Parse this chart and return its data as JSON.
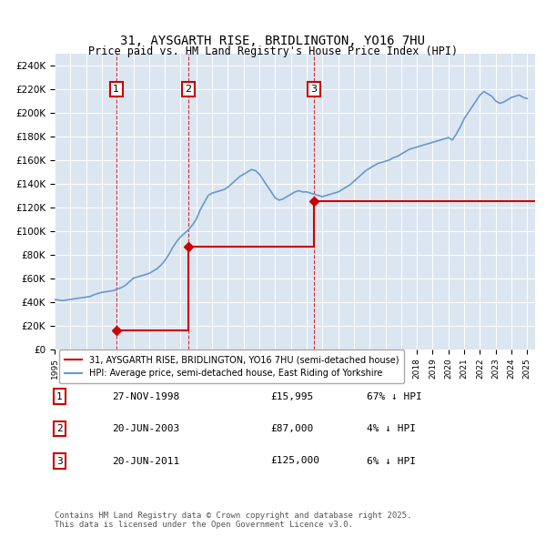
{
  "title": "31, AYSGARTH RISE, BRIDLINGTON, YO16 7HU",
  "subtitle": "Price paid vs. HM Land Registry's House Price Index (HPI)",
  "xlabel": "",
  "ylabel": "",
  "ylim": [
    0,
    250000
  ],
  "ytick_values": [
    0,
    20000,
    40000,
    60000,
    80000,
    100000,
    120000,
    140000,
    160000,
    180000,
    200000,
    220000,
    240000
  ],
  "ytick_labels": [
    "£0",
    "£20K",
    "£40K",
    "£60K",
    "£80K",
    "£100K",
    "£120K",
    "£140K",
    "£160K",
    "£180K",
    "£200K",
    "£220K",
    "£240K"
  ],
  "background_color": "#dce6f1",
  "plot_bg_color": "#dce6f1",
  "hpi_color": "#6699cc",
  "price_color": "#cc0000",
  "sale_marker_color": "#cc0000",
  "legend_label_price": "31, AYSGARTH RISE, BRIDLINGTON, YO16 7HU (semi-detached house)",
  "legend_label_hpi": "HPI: Average price, semi-detached house, East Riding of Yorkshire",
  "sales": [
    {
      "date": 1998.91,
      "price": 15995,
      "label": "1"
    },
    {
      "date": 2003.47,
      "price": 87000,
      "label": "2"
    },
    {
      "date": 2011.47,
      "price": 125000,
      "label": "3"
    }
  ],
  "table_rows": [
    {
      "num": "1",
      "date": "27-NOV-1998",
      "price": "£15,995",
      "note": "67% ↓ HPI"
    },
    {
      "num": "2",
      "date": "20-JUN-2003",
      "price": "£87,000",
      "note": "4% ↓ HPI"
    },
    {
      "num": "3",
      "date": "20-JUN-2011",
      "price": "£125,000",
      "note": "6% ↓ HPI"
    }
  ],
  "footer": "Contains HM Land Registry data © Crown copyright and database right 2025.\nThis data is licensed under the Open Government Licence v3.0.",
  "xmin": 1995,
  "xmax": 2025.5,
  "vline_dates": [
    1998.91,
    2003.47,
    2011.47
  ],
  "hpi_data": {
    "years": [
      1995.0,
      1995.25,
      1995.5,
      1995.75,
      1996.0,
      1996.25,
      1996.5,
      1996.75,
      1997.0,
      1997.25,
      1997.5,
      1997.75,
      1998.0,
      1998.25,
      1998.5,
      1998.75,
      1999.0,
      1999.25,
      1999.5,
      1999.75,
      2000.0,
      2000.25,
      2000.5,
      2000.75,
      2001.0,
      2001.25,
      2001.5,
      2001.75,
      2002.0,
      2002.25,
      2002.5,
      2002.75,
      2003.0,
      2003.25,
      2003.5,
      2003.75,
      2004.0,
      2004.25,
      2004.5,
      2004.75,
      2005.0,
      2005.25,
      2005.5,
      2005.75,
      2006.0,
      2006.25,
      2006.5,
      2006.75,
      2007.0,
      2007.25,
      2007.5,
      2007.75,
      2008.0,
      2008.25,
      2008.5,
      2008.75,
      2009.0,
      2009.25,
      2009.5,
      2009.75,
      2010.0,
      2010.25,
      2010.5,
      2010.75,
      2011.0,
      2011.25,
      2011.5,
      2011.75,
      2012.0,
      2012.25,
      2012.5,
      2012.75,
      2013.0,
      2013.25,
      2013.5,
      2013.75,
      2014.0,
      2014.25,
      2014.5,
      2014.75,
      2015.0,
      2015.25,
      2015.5,
      2015.75,
      2016.0,
      2016.25,
      2016.5,
      2016.75,
      2017.0,
      2017.25,
      2017.5,
      2017.75,
      2018.0,
      2018.25,
      2018.5,
      2018.75,
      2019.0,
      2019.25,
      2019.5,
      2019.75,
      2020.0,
      2020.25,
      2020.5,
      2020.75,
      2021.0,
      2021.25,
      2021.5,
      2021.75,
      2022.0,
      2022.25,
      2022.5,
      2022.75,
      2023.0,
      2023.25,
      2023.5,
      2023.75,
      2024.0,
      2024.25,
      2024.5,
      2024.75,
      2025.0
    ],
    "values": [
      42000,
      41500,
      41000,
      41500,
      42000,
      42500,
      43000,
      43500,
      44000,
      44500,
      46000,
      47000,
      48000,
      48500,
      49000,
      49500,
      51000,
      52000,
      54000,
      57000,
      60000,
      61000,
      62000,
      63000,
      64000,
      66000,
      68000,
      71000,
      75000,
      80000,
      86000,
      91000,
      95000,
      98000,
      101000,
      105000,
      110000,
      118000,
      124000,
      130000,
      132000,
      133000,
      134000,
      135000,
      137000,
      140000,
      143000,
      146000,
      148000,
      150000,
      152000,
      151000,
      148000,
      143000,
      138000,
      133000,
      128000,
      126000,
      127000,
      129000,
      131000,
      133000,
      134000,
      133000,
      133000,
      132000,
      131000,
      130000,
      129000,
      130000,
      131000,
      132000,
      133000,
      135000,
      137000,
      139000,
      142000,
      145000,
      148000,
      151000,
      153000,
      155000,
      157000,
      158000,
      159000,
      160000,
      162000,
      163000,
      165000,
      167000,
      169000,
      170000,
      171000,
      172000,
      173000,
      174000,
      175000,
      176000,
      177000,
      178000,
      179000,
      177000,
      182000,
      188000,
      195000,
      200000,
      205000,
      210000,
      215000,
      218000,
      216000,
      214000,
      210000,
      208000,
      209000,
      211000,
      213000,
      214000,
      215000,
      213000,
      212000
    ]
  },
  "price_line_data": {
    "years": [
      1998.91,
      1998.91,
      2003.47,
      2003.47,
      2011.47,
      2011.47,
      2025.0
    ],
    "values": [
      15995,
      15995,
      87000,
      87000,
      125000,
      125000,
      125000
    ]
  }
}
